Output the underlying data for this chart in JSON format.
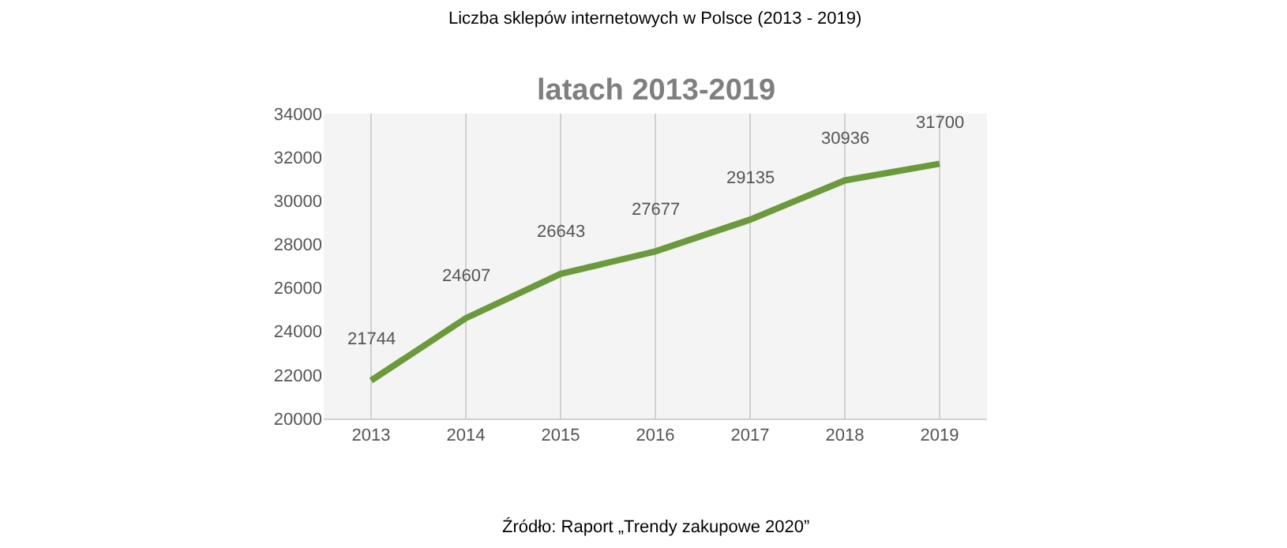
{
  "chart_data": {
    "type": "line",
    "title": "Liczba sklepów internetowych w Polsce (2013 - 2019)",
    "subtitle": "latach 2013-2019",
    "categories": [
      "2013",
      "2014",
      "2015",
      "2016",
      "2017",
      "2018",
      "2019"
    ],
    "series": [
      {
        "color": "#6a9a3c",
        "values": [
          21744,
          24607,
          26643,
          27677,
          29135,
          30936,
          31700
        ]
      }
    ],
    "ylim": [
      20000,
      34000
    ],
    "yticks": [
      20000,
      22000,
      24000,
      26000,
      28000,
      30000,
      32000,
      34000
    ],
    "grid": "x",
    "marker": "none",
    "line_style": "solid",
    "data_labels": true,
    "annotations": [
      "Źródło: Raport „Trendy zakupowe 2020”"
    ]
  }
}
